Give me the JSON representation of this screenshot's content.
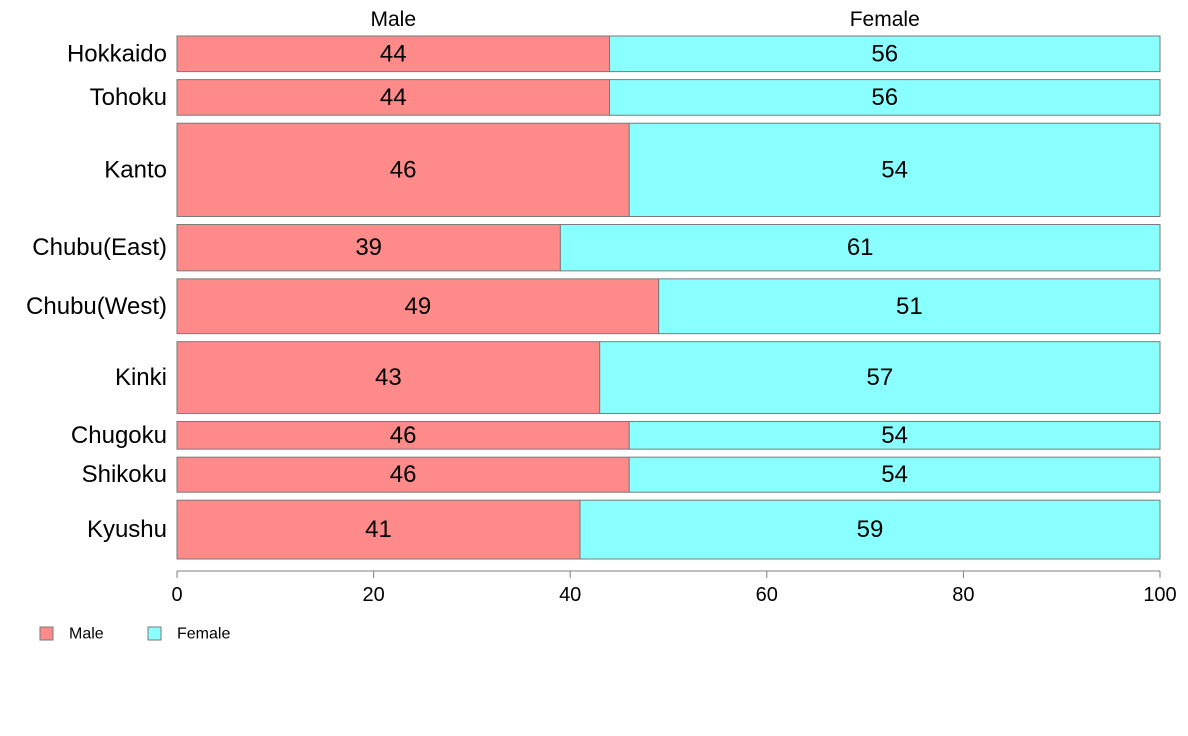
{
  "chart_data": {
    "type": "bar",
    "orientation": "horizontal",
    "stacked": true,
    "categories": [
      "Hokkaido",
      "Tohoku",
      "Kanto",
      "Chubu(East)",
      "Chubu(West)",
      "Kinki",
      "Chugoku",
      "Shikoku",
      "Kyushu"
    ],
    "bar_weights": [
      0.63,
      0.63,
      1.65,
      0.82,
      0.97,
      1.27,
      0.49,
      0.62,
      1.04
    ],
    "series": [
      {
        "name": "Male",
        "color": "#ff8a8a",
        "values": [
          44,
          44,
          46,
          39,
          49,
          43,
          46,
          46,
          41
        ],
        "labels": [
          "44",
          "44",
          "46",
          "39",
          "49",
          "43",
          "46",
          "46",
          "41"
        ]
      },
      {
        "name": "Female",
        "color": "#8affff",
        "values": [
          56,
          56,
          54,
          61,
          51,
          57,
          54,
          54,
          59
        ],
        "labels": [
          "56",
          "56",
          "54",
          "61",
          "51",
          "57",
          "54",
          "54",
          "59"
        ]
      }
    ],
    "column_headers": [
      "Male",
      "Female"
    ],
    "xlim": [
      0,
      100
    ],
    "xticks": [
      "0",
      "20",
      "40",
      "60",
      "80",
      "100"
    ],
    "grid": false,
    "legend": {
      "position": "bottom-left",
      "entries": [
        "Male",
        "Female"
      ]
    }
  }
}
